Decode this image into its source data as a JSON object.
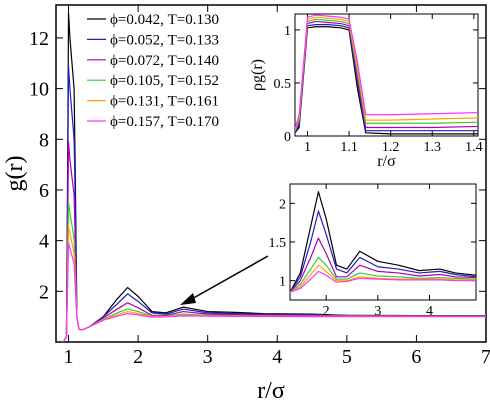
{
  "chart_data": [
    {
      "id": "main",
      "type": "line",
      "xlabel": "r/σ",
      "ylabel": "g(r)",
      "xlim": [
        0.82,
        7.0
      ],
      "ylim": [
        0,
        13.3
      ],
      "xticks": [
        1,
        2,
        3,
        4,
        5,
        6,
        7
      ],
      "yticks": [
        2,
        4,
        6,
        8,
        10,
        12
      ],
      "legend_position": "top-left",
      "series": [
        {
          "name": "ϕ=0.042, T=0.130",
          "color": "#000000",
          "peak": 13.0,
          "x": [
            0.92,
            0.97,
            0.985,
            1.0,
            1.02,
            1.05,
            1.08,
            1.1,
            1.12,
            1.15,
            1.2,
            1.3,
            1.5,
            1.7,
            1.85,
            2.0,
            2.2,
            2.4,
            2.65,
            3.0,
            3.4,
            3.8,
            4.5,
            5.0,
            6.0,
            7.0
          ],
          "y": [
            0,
            0.2,
            6.0,
            13.0,
            12.0,
            11.0,
            10.0,
            6.0,
            1.0,
            0.5,
            0.48,
            0.6,
            1.0,
            1.7,
            2.15,
            1.8,
            1.2,
            1.15,
            1.38,
            1.2,
            1.17,
            1.12,
            1.1,
            1.05,
            1.04,
            1.03
          ]
        },
        {
          "name": "ϕ=0.052, T=0.133",
          "color": "#1f1fbf",
          "peak": 10.9,
          "x": [
            0.92,
            0.97,
            0.985,
            1.0,
            1.02,
            1.05,
            1.08,
            1.1,
            1.12,
            1.15,
            1.2,
            1.3,
            1.5,
            1.7,
            1.85,
            2.0,
            2.2,
            2.4,
            2.65,
            3.0,
            3.4,
            3.8,
            4.5,
            5.0,
            6.0,
            7.0
          ],
          "y": [
            0,
            0.2,
            5.0,
            10.9,
            10.0,
            9.0,
            8.0,
            5.0,
            1.0,
            0.5,
            0.48,
            0.6,
            1.0,
            1.5,
            1.9,
            1.6,
            1.15,
            1.1,
            1.3,
            1.15,
            1.12,
            1.1,
            1.08,
            1.05,
            1.04,
            1.03
          ]
        },
        {
          "name": "ϕ=0.072, T=0.140",
          "color": "#b000b0",
          "peak": 7.9,
          "x": [
            0.92,
            0.97,
            0.985,
            1.0,
            1.02,
            1.05,
            1.08,
            1.1,
            1.12,
            1.15,
            1.2,
            1.3,
            1.5,
            1.7,
            1.85,
            2.0,
            2.2,
            2.4,
            2.65,
            3.0,
            3.4,
            3.8,
            4.5,
            5.0,
            6.0,
            7.0
          ],
          "y": [
            0,
            0.2,
            3.8,
            7.9,
            7.2,
            6.5,
            5.8,
            3.6,
            1.0,
            0.5,
            0.48,
            0.6,
            0.95,
            1.3,
            1.55,
            1.35,
            1.05,
            1.05,
            1.2,
            1.1,
            1.08,
            1.06,
            1.05,
            1.04,
            1.03,
            1.02
          ]
        },
        {
          "name": "ϕ=0.105, T=0.152",
          "color": "#33cc33",
          "peak": 5.5,
          "x": [
            0.92,
            0.97,
            0.985,
            1.0,
            1.02,
            1.05,
            1.08,
            1.1,
            1.12,
            1.15,
            1.2,
            1.3,
            1.5,
            1.7,
            1.85,
            2.0,
            2.2,
            2.4,
            2.65,
            3.0,
            3.4,
            3.8,
            4.5,
            5.0,
            6.0,
            7.0
          ],
          "y": [
            0,
            0.2,
            2.7,
            5.5,
            5.1,
            4.6,
            4.1,
            2.6,
            1.0,
            0.5,
            0.48,
            0.6,
            0.9,
            1.15,
            1.3,
            1.2,
            1.02,
            1.02,
            1.1,
            1.05,
            1.04,
            1.03,
            1.02,
            1.02,
            1.01,
            1.01
          ]
        },
        {
          "name": "ϕ=0.131, T=0.161",
          "color": "#ffa500",
          "peak": 4.6,
          "x": [
            0.92,
            0.97,
            0.985,
            1.0,
            1.02,
            1.05,
            1.08,
            1.1,
            1.12,
            1.15,
            1.2,
            1.3,
            1.5,
            1.7,
            1.85,
            2.0,
            2.2,
            2.4,
            2.65,
            3.0,
            3.4,
            3.8,
            4.5,
            5.0,
            6.0,
            7.0
          ],
          "y": [
            0,
            0.2,
            2.2,
            4.6,
            4.3,
            3.9,
            3.5,
            2.2,
            1.0,
            0.5,
            0.48,
            0.6,
            0.88,
            1.08,
            1.2,
            1.12,
            1.0,
            1.0,
            1.05,
            1.03,
            1.02,
            1.02,
            1.01,
            1.01,
            1.01,
            1.0
          ]
        },
        {
          "name": "ϕ=0.157, T=0.170",
          "color": "#ff33ff",
          "peak": 3.9,
          "x": [
            0.92,
            0.97,
            0.985,
            1.0,
            1.02,
            1.05,
            1.08,
            1.1,
            1.12,
            1.15,
            1.2,
            1.3,
            1.5,
            1.7,
            1.85,
            2.0,
            2.2,
            2.4,
            2.65,
            3.0,
            3.4,
            3.8,
            4.5,
            5.0,
            6.0,
            7.0
          ],
          "y": [
            0,
            0.2,
            1.9,
            3.9,
            3.7,
            3.4,
            3.1,
            2.0,
            1.0,
            0.5,
            0.48,
            0.6,
            0.86,
            1.02,
            1.12,
            1.07,
            0.98,
            0.99,
            1.03,
            1.02,
            1.01,
            1.01,
            1.0,
            1.0,
            1.0,
            1.0
          ]
        }
      ]
    },
    {
      "id": "inset-top",
      "type": "line",
      "xlabel": "r/σ",
      "ylabel": "ρg(r)",
      "xlim": [
        0.97,
        1.41
      ],
      "ylim": [
        0,
        1.15
      ],
      "xticks": [
        1,
        1.1,
        1.2,
        1.3,
        1.4
      ],
      "yticks": [
        0,
        0.5,
        1
      ],
      "series": [
        {
          "color": "#000000",
          "x": [
            0.97,
            0.98,
            1.0,
            1.02,
            1.05,
            1.08,
            1.1,
            1.12,
            1.14,
            1.2,
            1.3,
            1.41
          ],
          "y": [
            0.03,
            0.08,
            1.02,
            1.03,
            1.03,
            1.02,
            1.0,
            0.45,
            0.03,
            0.02,
            0.02,
            0.02
          ]
        },
        {
          "color": "#1f1fbf",
          "x": [
            0.97,
            0.98,
            1.0,
            1.02,
            1.05,
            1.08,
            1.1,
            1.12,
            1.14,
            1.2,
            1.3,
            1.41
          ],
          "y": [
            0.03,
            0.1,
            1.04,
            1.05,
            1.05,
            1.04,
            1.02,
            0.5,
            0.05,
            0.05,
            0.05,
            0.05
          ]
        },
        {
          "color": "#b000b0",
          "x": [
            0.97,
            0.98,
            1.0,
            1.02,
            1.05,
            1.08,
            1.1,
            1.12,
            1.14,
            1.2,
            1.3,
            1.41
          ],
          "y": [
            0.04,
            0.12,
            1.06,
            1.08,
            1.07,
            1.06,
            1.04,
            0.55,
            0.08,
            0.08,
            0.08,
            0.09
          ]
        },
        {
          "color": "#33cc33",
          "x": [
            0.97,
            0.98,
            1.0,
            1.02,
            1.05,
            1.08,
            1.1,
            1.12,
            1.14,
            1.2,
            1.3,
            1.41
          ],
          "y": [
            0.05,
            0.15,
            1.08,
            1.1,
            1.09,
            1.08,
            1.06,
            0.6,
            0.12,
            0.12,
            0.12,
            0.13
          ]
        },
        {
          "color": "#ffa500",
          "x": [
            0.97,
            0.98,
            1.0,
            1.02,
            1.05,
            1.08,
            1.1,
            1.12,
            1.14,
            1.2,
            1.3,
            1.41
          ],
          "y": [
            0.06,
            0.18,
            1.1,
            1.12,
            1.11,
            1.1,
            1.08,
            0.65,
            0.15,
            0.15,
            0.16,
            0.17
          ]
        },
        {
          "color": "#ff33ff",
          "x": [
            0.97,
            0.98,
            1.0,
            1.02,
            1.05,
            1.08,
            1.1,
            1.12,
            1.14,
            1.2,
            1.3,
            1.41
          ],
          "y": [
            0.07,
            0.2,
            1.12,
            1.14,
            1.13,
            1.12,
            1.1,
            0.7,
            0.2,
            0.2,
            0.21,
            0.22
          ]
        }
      ]
    },
    {
      "id": "inset-bottom",
      "type": "line",
      "xlim": [
        1.3,
        4.9
      ],
      "ylim": [
        0.75,
        2.25
      ],
      "xticks": [
        2,
        3,
        4
      ],
      "yticks": [
        1,
        1.5,
        2
      ],
      "series": [
        {
          "color": "#000000",
          "x": [
            1.3,
            1.5,
            1.7,
            1.85,
            2.0,
            2.2,
            2.4,
            2.65,
            3.0,
            3.4,
            3.8,
            4.2,
            4.5,
            4.9
          ],
          "y": [
            0.85,
            1.1,
            1.7,
            2.15,
            1.8,
            1.2,
            1.15,
            1.38,
            1.25,
            1.2,
            1.13,
            1.15,
            1.1,
            1.07
          ]
        },
        {
          "color": "#1f1fbf",
          "x": [
            1.3,
            1.5,
            1.7,
            1.85,
            2.0,
            2.2,
            2.4,
            2.65,
            3.0,
            3.4,
            3.8,
            4.2,
            4.5,
            4.9
          ],
          "y": [
            0.85,
            1.05,
            1.5,
            1.9,
            1.6,
            1.15,
            1.1,
            1.3,
            1.18,
            1.15,
            1.1,
            1.12,
            1.08,
            1.05
          ]
        },
        {
          "color": "#b000b0",
          "x": [
            1.3,
            1.5,
            1.7,
            1.85,
            2.0,
            2.2,
            2.4,
            2.65,
            3.0,
            3.4,
            3.8,
            4.2,
            4.5,
            4.9
          ],
          "y": [
            0.85,
            1.0,
            1.3,
            1.55,
            1.35,
            1.05,
            1.05,
            1.2,
            1.12,
            1.1,
            1.06,
            1.08,
            1.05,
            1.04
          ]
        },
        {
          "color": "#33cc33",
          "x": [
            1.3,
            1.5,
            1.7,
            1.85,
            2.0,
            2.2,
            2.4,
            2.65,
            3.0,
            3.4,
            3.8,
            4.2,
            4.5,
            4.9
          ],
          "y": [
            0.85,
            0.95,
            1.15,
            1.3,
            1.2,
            1.02,
            1.02,
            1.1,
            1.06,
            1.05,
            1.03,
            1.04,
            1.03,
            1.02
          ]
        },
        {
          "color": "#ffa500",
          "x": [
            1.3,
            1.5,
            1.7,
            1.85,
            2.0,
            2.2,
            2.4,
            2.65,
            3.0,
            3.4,
            3.8,
            4.2,
            4.5,
            4.9
          ],
          "y": [
            0.85,
            0.92,
            1.08,
            1.2,
            1.12,
            1.0,
            1.0,
            1.05,
            1.03,
            1.02,
            1.02,
            1.02,
            1.01,
            1.01
          ]
        },
        {
          "color": "#ff33ff",
          "x": [
            1.3,
            1.5,
            1.7,
            1.85,
            2.0,
            2.2,
            2.4,
            2.65,
            3.0,
            3.4,
            3.8,
            4.2,
            4.5,
            4.9
          ],
          "y": [
            0.85,
            0.9,
            1.02,
            1.12,
            1.07,
            0.98,
            0.99,
            1.03,
            1.02,
            1.01,
            1.01,
            1.01,
            1.0,
            1.0
          ]
        }
      ]
    }
  ]
}
